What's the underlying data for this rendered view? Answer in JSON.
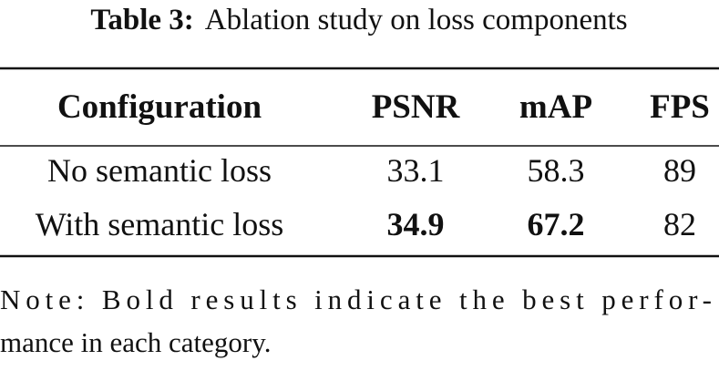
{
  "caption": {
    "label": "Table 3:",
    "text": "Ablation study on loss components"
  },
  "table": {
    "header": [
      "Configuration",
      "PSNR",
      "mAP",
      "FPS"
    ],
    "rows": [
      [
        "No semantic loss",
        "33.1",
        "58.3",
        "89"
      ],
      [
        "With semantic loss",
        "34.9",
        "67.2",
        "82"
      ]
    ],
    "bold": [
      [
        false,
        false,
        false,
        false
      ],
      [
        false,
        true,
        true,
        false
      ]
    ]
  },
  "note": [
    "Note: Bold results indicate the best perfor-",
    "mance in each category."
  ]
}
